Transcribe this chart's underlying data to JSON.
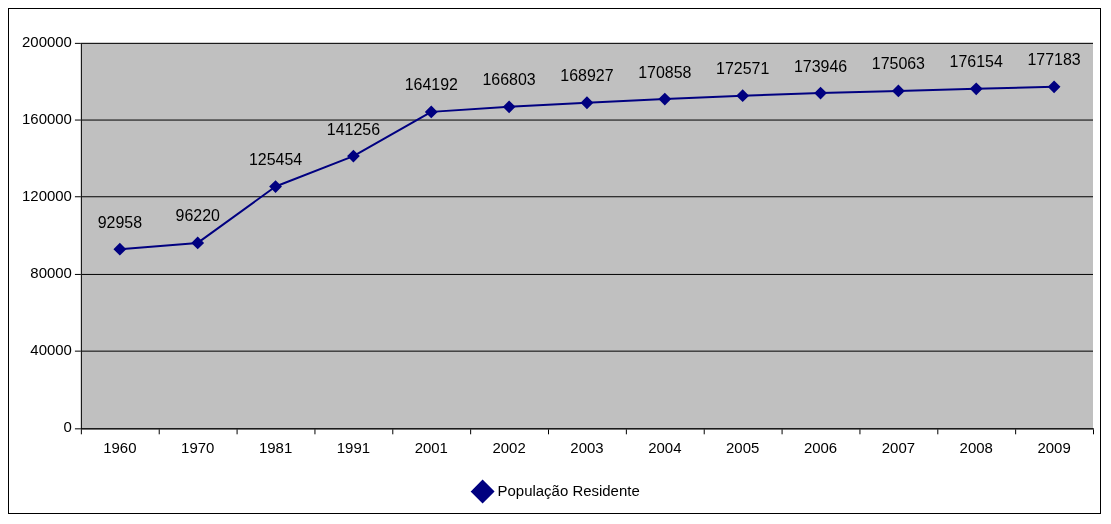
{
  "chart_data": {
    "type": "line",
    "categories": [
      "1960",
      "1970",
      "1981",
      "1991",
      "2001",
      "2002",
      "2003",
      "2004",
      "2005",
      "2006",
      "2007",
      "2008",
      "2009"
    ],
    "series": [
      {
        "name": "População Residente",
        "color": "#000080",
        "values": [
          92958,
          96220,
          125454,
          141256,
          164192,
          166803,
          168927,
          170858,
          172571,
          173946,
          175063,
          176154,
          177183
        ]
      }
    ],
    "ylim": [
      0,
      200000
    ],
    "yticks": [
      0,
      40000,
      80000,
      120000,
      160000,
      200000
    ],
    "grid": "y",
    "legend": "bottom",
    "marker": "diamond",
    "line_style": "solid",
    "data_labels": true
  }
}
